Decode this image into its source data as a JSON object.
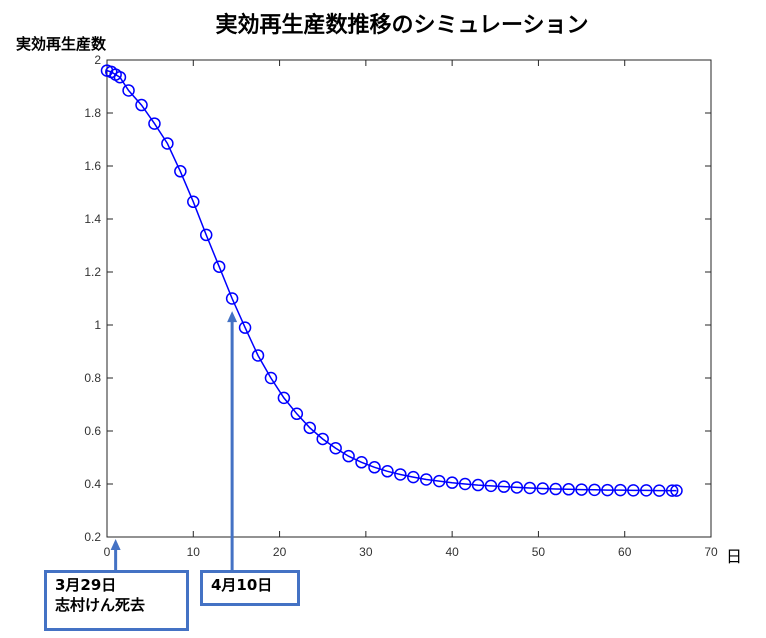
{
  "chart_data": {
    "type": "line",
    "title": "実効再生産数推移のシミュレーション",
    "ylabel": "実効再生産数",
    "xlabel": "日",
    "xlim": [
      0,
      70
    ],
    "ylim": [
      0.2,
      2
    ],
    "xticks": [
      "0",
      "10",
      "20",
      "30",
      "40",
      "50",
      "60",
      "70"
    ],
    "yticks": [
      "0.2",
      "0.4",
      "0.6",
      "0.8",
      "1",
      "1.2",
      "1.4",
      "1.6",
      "1.8",
      "2"
    ],
    "grid": false,
    "marker": "circle",
    "line_color": "#0000ff",
    "x": [
      0,
      0.5,
      1,
      1.5,
      2.5,
      4,
      5.5,
      7,
      8.5,
      10,
      11.5,
      13,
      14.5,
      16,
      17.5,
      19,
      20.5,
      22,
      23.5,
      25,
      26.5,
      28,
      29.5,
      31,
      32.5,
      34,
      35.5,
      37,
      38.5,
      40,
      41.5,
      43,
      44.5,
      46,
      47.5,
      49,
      50.5,
      52,
      53.5,
      55,
      56.5,
      58,
      59.5,
      61,
      62.5,
      64,
      65.5,
      66
    ],
    "values": [
      1.96,
      1.955,
      1.945,
      1.935,
      1.885,
      1.83,
      1.76,
      1.685,
      1.58,
      1.465,
      1.34,
      1.22,
      1.1,
      0.99,
      0.885,
      0.8,
      0.725,
      0.665,
      0.612,
      0.57,
      0.535,
      0.505,
      0.482,
      0.463,
      0.448,
      0.436,
      0.426,
      0.417,
      0.411,
      0.405,
      0.4,
      0.396,
      0.393,
      0.39,
      0.387,
      0.385,
      0.383,
      0.381,
      0.38,
      0.379,
      0.378,
      0.377,
      0.377,
      0.376,
      0.376,
      0.375,
      0.375,
      0.375
    ],
    "annotations": [
      {
        "name": "ann-mar29",
        "lines": [
          "3月29日",
          "志村けん死去"
        ],
        "x": 1,
        "arrow_to_y": 0.2
      },
      {
        "name": "ann-apr10",
        "lines": [
          "4月10日"
        ],
        "x": 14.5,
        "arrow_to_y": 1.06
      }
    ],
    "annotation_color": "#4472c4"
  }
}
